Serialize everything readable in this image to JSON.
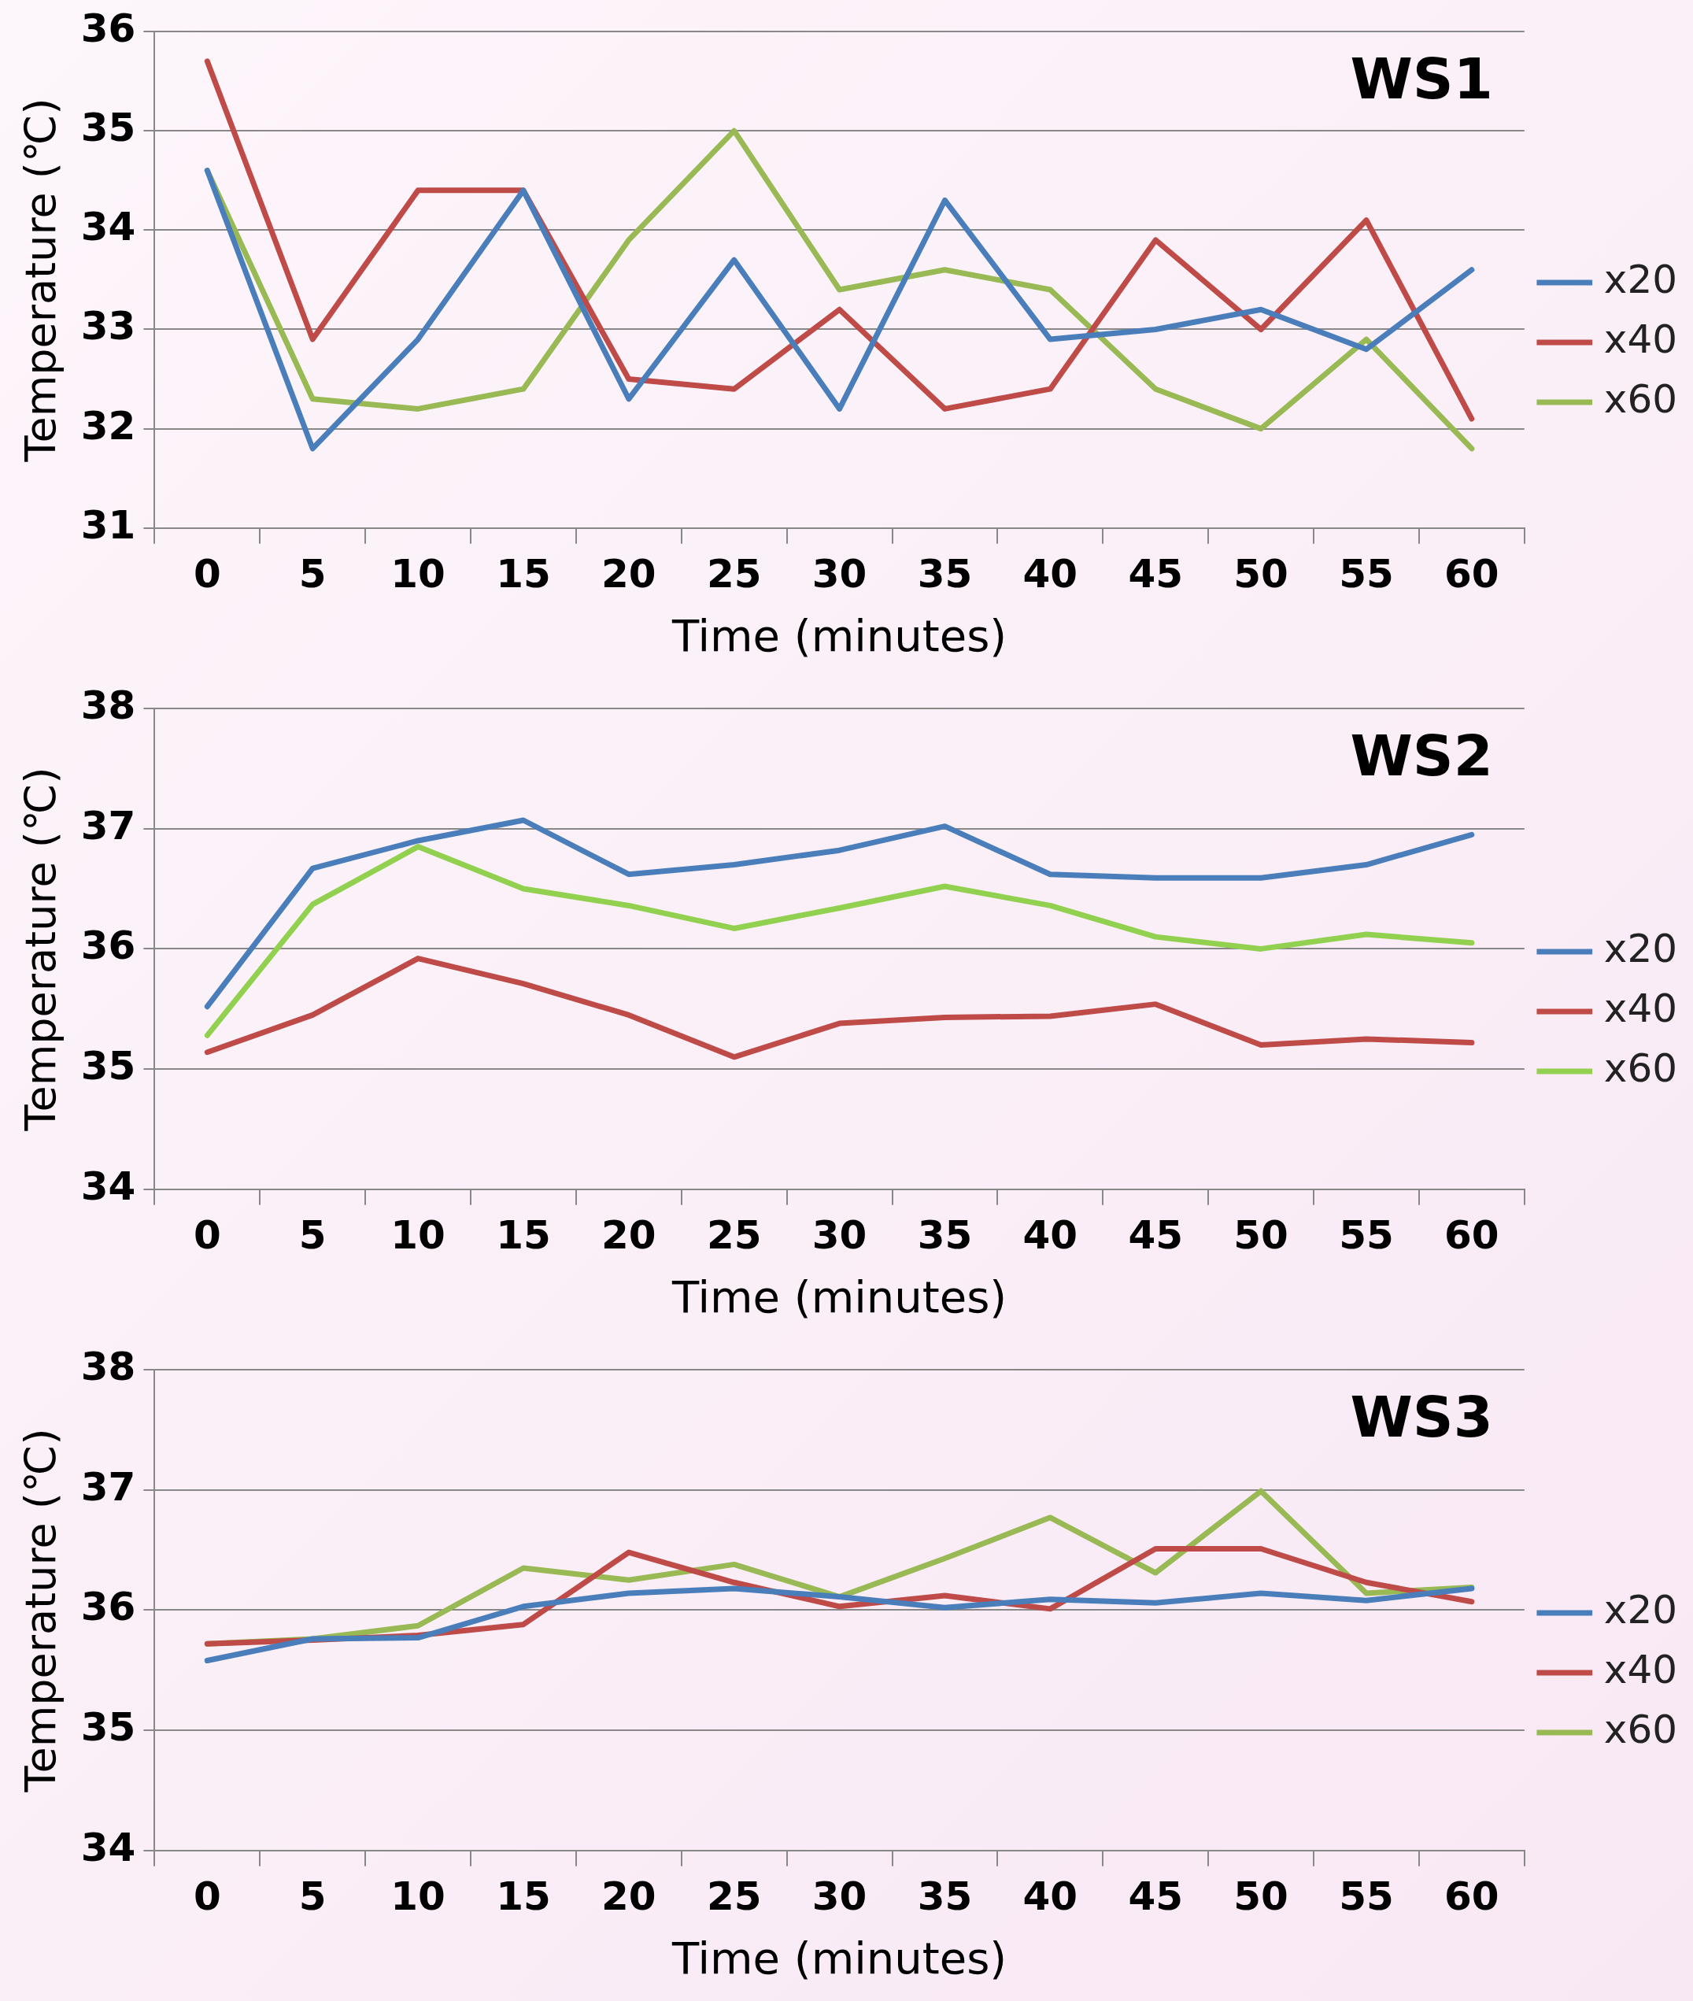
{
  "chart_data": [
    {
      "type": "line",
      "title": "WS1",
      "xlabel": "Time (minutes)",
      "ylabel": "Temperature (℃)",
      "categories": [
        "0",
        "5",
        "10",
        "15",
        "20",
        "25",
        "30",
        "35",
        "40",
        "45",
        "50",
        "55",
        "60"
      ],
      "ylim": [
        31,
        36
      ],
      "yticks": [
        31,
        32,
        33,
        34,
        35,
        36
      ],
      "grid": "y",
      "legend": "right",
      "marker": "none",
      "line_style": "solid",
      "series": [
        {
          "name": "x20",
          "color": "#4a7ebb",
          "values": [
            34.6,
            31.8,
            32.9,
            34.4,
            32.3,
            33.7,
            32.2,
            34.3,
            32.9,
            33.0,
            33.2,
            32.8,
            33.6
          ]
        },
        {
          "name": "x40",
          "color": "#be4b48",
          "values": [
            35.7,
            32.9,
            34.4,
            34.4,
            32.5,
            32.4,
            33.2,
            32.2,
            32.4,
            33.9,
            33.0,
            34.1,
            32.1
          ]
        },
        {
          "name": "x60",
          "color": "#98b954",
          "values": [
            34.6,
            32.3,
            32.2,
            32.4,
            33.9,
            35.0,
            33.4,
            33.6,
            33.4,
            32.4,
            32.0,
            32.9,
            31.8
          ]
        }
      ]
    },
    {
      "type": "line",
      "title": "WS2",
      "xlabel": "Time (minutes)",
      "ylabel": "Temperature (℃)",
      "categories": [
        "0",
        "5",
        "10",
        "15",
        "20",
        "25",
        "30",
        "35",
        "40",
        "45",
        "50",
        "55",
        "60"
      ],
      "ylim": [
        34,
        38
      ],
      "yticks": [
        34,
        35,
        36,
        37,
        38
      ],
      "grid": "y",
      "legend": "right",
      "marker": "none",
      "line_style": "solid",
      "series": [
        {
          "name": "x20",
          "color": "#4a7ebb",
          "values": [
            35.52,
            36.67,
            36.9,
            37.07,
            36.62,
            36.7,
            36.82,
            37.02,
            36.62,
            36.59,
            36.59,
            36.7,
            36.95
          ]
        },
        {
          "name": "x40",
          "color": "#be4b48",
          "values": [
            35.14,
            35.45,
            35.92,
            35.71,
            35.45,
            35.1,
            35.38,
            35.43,
            35.44,
            35.54,
            35.2,
            35.25,
            35.22
          ]
        },
        {
          "name": "x60",
          "color": "#92d050",
          "values": [
            35.28,
            36.37,
            36.85,
            36.5,
            36.36,
            36.17,
            36.34,
            36.52,
            36.36,
            36.1,
            36.0,
            36.12,
            36.05
          ]
        }
      ]
    },
    {
      "type": "line",
      "title": "WS3",
      "xlabel": "Time (minutes)",
      "ylabel": "Temperature (℃)",
      "categories": [
        "0",
        "5",
        "10",
        "15",
        "20",
        "25",
        "30",
        "35",
        "40",
        "45",
        "50",
        "55",
        "60"
      ],
      "ylim": [
        34,
        38
      ],
      "yticks": [
        34,
        35,
        36,
        37,
        38
      ],
      "grid": "y",
      "legend": "right",
      "marker": "none",
      "line_style": "solid",
      "series": [
        {
          "name": "x20",
          "color": "#4a7ebb",
          "values": [
            35.58,
            35.76,
            35.77,
            36.03,
            36.14,
            36.18,
            36.11,
            36.02,
            36.09,
            36.06,
            36.14,
            36.08,
            36.18
          ]
        },
        {
          "name": "x40",
          "color": "#be4b48",
          "values": [
            35.72,
            35.75,
            35.79,
            35.88,
            36.48,
            36.23,
            36.03,
            36.12,
            36.01,
            36.51,
            36.51,
            36.23,
            36.07
          ]
        },
        {
          "name": "x60",
          "color": "#98b954",
          "values": [
            35.72,
            35.76,
            35.87,
            36.35,
            36.25,
            36.38,
            36.11,
            36.43,
            36.77,
            36.31,
            36.99,
            36.14,
            36.19
          ]
        }
      ]
    }
  ]
}
